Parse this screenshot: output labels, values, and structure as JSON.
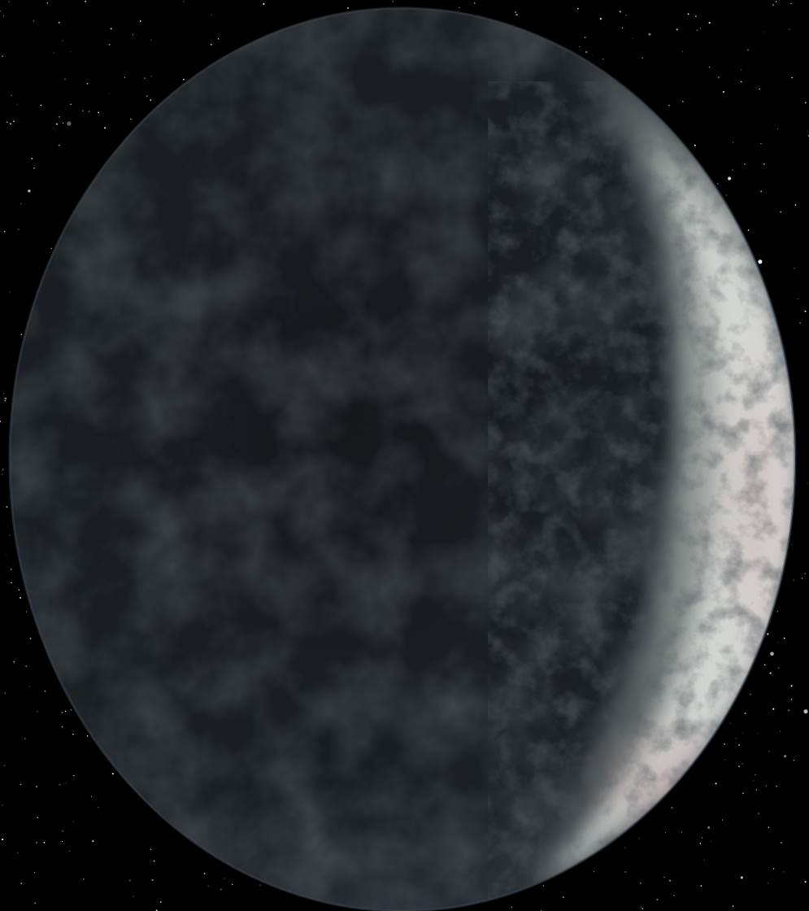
{
  "scene": {
    "subject": "planet",
    "background_color": "#000000",
    "colors": {
      "dark_side": "#1a1d22",
      "dark_side_edge": "#2a3138",
      "limb_rim": "#3b4550",
      "lit_crescent_bright": "#e4e6e3",
      "lit_crescent_mid": "#9aa09c",
      "lit_crescent_tint": "#c9aeb0",
      "star": "#ffffff"
    },
    "lit_side": "right",
    "phase": "crescent"
  }
}
